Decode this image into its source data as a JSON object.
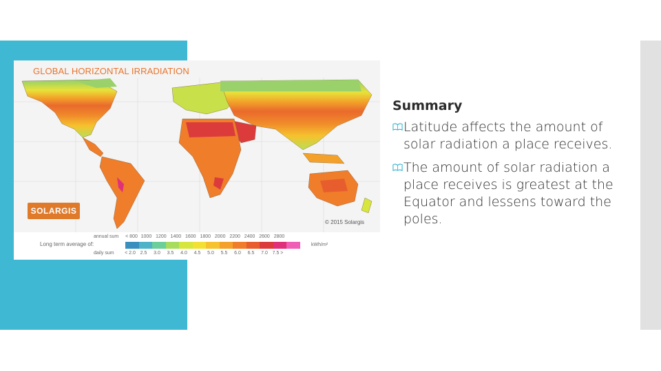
{
  "slide": {
    "colors": {
      "teal_band": "#3fb8d4",
      "side_strip": "#e1e1e1",
      "text": "#2b2b2b",
      "map_title": "#e8742c"
    }
  },
  "map": {
    "title": "GLOBAL HORIZONTAL IRRADIATION",
    "logo_text": "SOLARGIS",
    "copyright": "© 2015 Solargis",
    "legend": {
      "caption": "Long term average of:",
      "annual_label": "annual sum",
      "daily_label": "daily sum",
      "annual_values": [
        "< 800",
        "1000",
        "1200",
        "1400",
        "1600",
        "1800",
        "2000",
        "2200",
        "2400",
        "2600",
        "2800"
      ],
      "daily_values": [
        "< 2.0",
        "2.5",
        "3.0",
        "3.5",
        "4.0",
        "4.5",
        "5.0",
        "5.5",
        "6.0",
        "6.5",
        "7.0",
        "7.5 >"
      ],
      "units": "kWh/m²",
      "colors": [
        "#3a8fbf",
        "#4fb3c7",
        "#6ccf9a",
        "#a7dc5c",
        "#d6e63c",
        "#f2e133",
        "#f6c22d",
        "#f3a12a",
        "#ef7d2a",
        "#e85d2e",
        "#dc3b3c",
        "#e0307a",
        "#ef5fb5"
      ]
    }
  },
  "summary": {
    "heading": "Summary",
    "bullets": [
      "Latitude affects the amount of solar radiation a place receives.",
      "The amount of solar radiation a place receives is greatest at the Equator and lessens toward the poles."
    ],
    "bullet_icon": "book-bullet-icon"
  }
}
